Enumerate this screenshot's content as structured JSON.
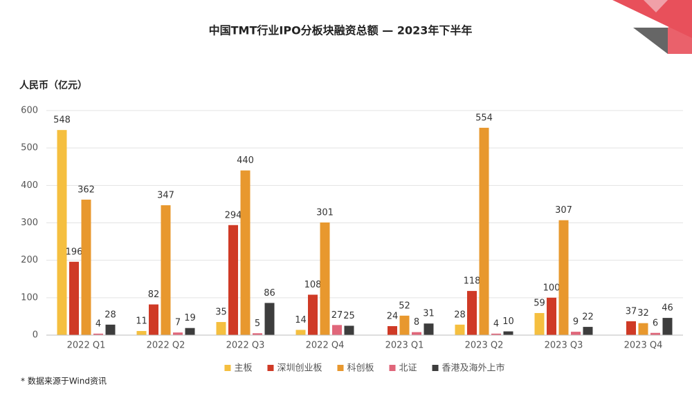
{
  "chart_data": {
    "type": "bar",
    "title": "中国TMT行业IPO分板块融资总额 — 2023年下半年",
    "y_axis_title": "人民币（亿元）",
    "footnote": "* 数据来源于Wind资讯",
    "categories": [
      "2022 Q1",
      "2022 Q2",
      "2022 Q3",
      "2022 Q4",
      "2023 Q1",
      "2023 Q2",
      "2023 Q3",
      "2023 Q4"
    ],
    "series": [
      {
        "name": "主板",
        "color": "#f5bf3f",
        "values": [
          548,
          11,
          35,
          14,
          null,
          28,
          59,
          null
        ]
      },
      {
        "name": "深圳创业板",
        "color": "#cf3a26",
        "values": [
          196,
          82,
          294,
          108,
          24,
          118,
          100,
          37
        ]
      },
      {
        "name": "科创板",
        "color": "#e8982e",
        "values": [
          362,
          347,
          440,
          301,
          52,
          554,
          307,
          32
        ]
      },
      {
        "name": "北证",
        "color": "#e0667a",
        "values": [
          4,
          7,
          5,
          27,
          8,
          4,
          9,
          6
        ]
      },
      {
        "name": "香港及海外上市",
        "color": "#3d3d3d",
        "values": [
          28,
          19,
          86,
          25,
          31,
          10,
          22,
          46
        ]
      }
    ],
    "ylim": [
      0,
      600
    ],
    "yticks": [
      0,
      100,
      200,
      300,
      400,
      500,
      600
    ],
    "grid": true,
    "legend": "bottom"
  }
}
